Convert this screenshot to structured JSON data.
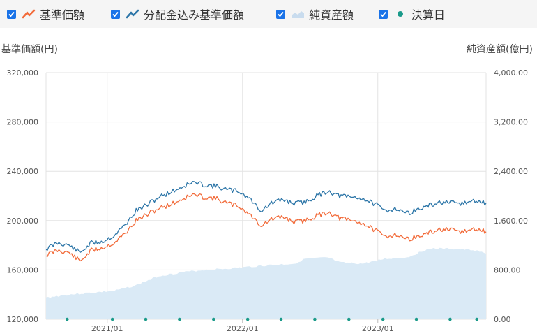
{
  "legend": [
    {
      "label": "基準価額",
      "icon": "line-chart-icon",
      "color": "#f26b3a",
      "checked": true
    },
    {
      "label": "分配金込み基準価額",
      "icon": "line-chart-icon",
      "color": "#2d76a8",
      "checked": true
    },
    {
      "label": "純資産額",
      "icon": "area-chart-icon",
      "color": "#c9dcee",
      "checked": true
    },
    {
      "label": "決算日",
      "icon": "dot-icon",
      "color": "#1a9a8a",
      "checked": true
    }
  ],
  "chart_data": {
    "type": "line",
    "ylabel": "基準価額(円)",
    "y2label": "純資産額(億円)",
    "ylim": [
      120000,
      320000
    ],
    "y2lim": [
      0,
      4000
    ],
    "yticks": [
      "320,000",
      "280,000",
      "240,000",
      "200,000",
      "160,000",
      "120,000"
    ],
    "y2ticks": [
      "4,000.00",
      "3,200.00",
      "2,400.00",
      "1,600.00",
      "800.00",
      "0.00"
    ],
    "xticks": [
      {
        "label": "2021/01",
        "date": "2021-01-01"
      },
      {
        "label": "2022/01",
        "date": "2022-01-01"
      },
      {
        "label": "2023/01",
        "date": "2023-01-01"
      }
    ],
    "xrange": [
      "2020-07-20",
      "2023-10-20"
    ],
    "grid": true,
    "series": [
      {
        "name": "基準価額",
        "color": "#f26b3a",
        "axis": "left",
        "points": [
          [
            "2020-07-20",
            172000
          ],
          [
            "2020-08-20",
            176000
          ],
          [
            "2020-09-20",
            174000
          ],
          [
            "2020-10-20",
            167000
          ],
          [
            "2020-11-20",
            176000
          ],
          [
            "2020-12-20",
            178000
          ],
          [
            "2021-01-20",
            182000
          ],
          [
            "2021-02-20",
            190000
          ],
          [
            "2021-03-20",
            200000
          ],
          [
            "2021-04-20",
            205000
          ],
          [
            "2021-05-20",
            210000
          ],
          [
            "2021-06-20",
            213000
          ],
          [
            "2021-07-20",
            217000
          ],
          [
            "2021-08-20",
            221000
          ],
          [
            "2021-09-20",
            219000
          ],
          [
            "2021-10-20",
            218000
          ],
          [
            "2021-11-20",
            214000
          ],
          [
            "2021-12-20",
            212000
          ],
          [
            "2022-01-20",
            205000
          ],
          [
            "2022-02-20",
            196000
          ],
          [
            "2022-03-20",
            201000
          ],
          [
            "2022-04-20",
            203000
          ],
          [
            "2022-05-20",
            199000
          ],
          [
            "2022-06-20",
            200000
          ],
          [
            "2022-07-20",
            204000
          ],
          [
            "2022-08-20",
            207000
          ],
          [
            "2022-09-20",
            202000
          ],
          [
            "2022-10-20",
            200000
          ],
          [
            "2022-11-20",
            198000
          ],
          [
            "2022-12-20",
            193000
          ],
          [
            "2023-01-20",
            187000
          ],
          [
            "2023-02-20",
            189000
          ],
          [
            "2023-03-20",
            185000
          ],
          [
            "2023-04-20",
            187000
          ],
          [
            "2023-05-20",
            190000
          ],
          [
            "2023-06-20",
            193000
          ],
          [
            "2023-07-20",
            192000
          ],
          [
            "2023-08-20",
            191000
          ],
          [
            "2023-09-20",
            193000
          ],
          [
            "2023-10-20",
            191000
          ]
        ]
      },
      {
        "name": "分配金込み基準価額",
        "color": "#2d76a8",
        "axis": "left",
        "points": [
          [
            "2020-07-20",
            177000
          ],
          [
            "2020-08-20",
            182000
          ],
          [
            "2020-09-20",
            180000
          ],
          [
            "2020-10-20",
            174000
          ],
          [
            "2020-11-20",
            182000
          ],
          [
            "2020-12-20",
            183000
          ],
          [
            "2021-01-20",
            188000
          ],
          [
            "2021-02-20",
            197000
          ],
          [
            "2021-03-20",
            208000
          ],
          [
            "2021-04-20",
            213000
          ],
          [
            "2021-05-20",
            219000
          ],
          [
            "2021-06-20",
            223000
          ],
          [
            "2021-07-20",
            227000
          ],
          [
            "2021-08-20",
            231000
          ],
          [
            "2021-09-20",
            229000
          ],
          [
            "2021-10-20",
            228000
          ],
          [
            "2021-11-20",
            225000
          ],
          [
            "2021-12-20",
            224000
          ],
          [
            "2022-01-20",
            218000
          ],
          [
            "2022-02-20",
            208000
          ],
          [
            "2022-03-20",
            214000
          ],
          [
            "2022-04-20",
            217000
          ],
          [
            "2022-05-20",
            214000
          ],
          [
            "2022-06-20",
            215000
          ],
          [
            "2022-07-20",
            220000
          ],
          [
            "2022-08-20",
            224000
          ],
          [
            "2022-09-20",
            220000
          ],
          [
            "2022-10-20",
            219000
          ],
          [
            "2022-11-20",
            218000
          ],
          [
            "2022-12-20",
            214000
          ],
          [
            "2023-01-20",
            208000
          ],
          [
            "2023-02-20",
            210000
          ],
          [
            "2023-03-20",
            206000
          ],
          [
            "2023-04-20",
            209000
          ],
          [
            "2023-05-20",
            212000
          ],
          [
            "2023-06-20",
            215000
          ],
          [
            "2023-07-20",
            214000
          ],
          [
            "2023-08-20",
            214000
          ],
          [
            "2023-09-20",
            216000
          ],
          [
            "2023-10-20",
            214000
          ]
        ]
      },
      {
        "name": "純資産額",
        "color": "#daeaf6",
        "axis": "right",
        "type": "area",
        "points": [
          [
            "2020-07-20",
            350
          ],
          [
            "2020-09-20",
            400
          ],
          [
            "2020-11-20",
            430
          ],
          [
            "2021-01-20",
            460
          ],
          [
            "2021-03-20",
            550
          ],
          [
            "2021-05-20",
            700
          ],
          [
            "2021-07-20",
            760
          ],
          [
            "2021-09-20",
            800
          ],
          [
            "2021-11-20",
            820
          ],
          [
            "2022-01-20",
            850
          ],
          [
            "2022-03-20",
            880
          ],
          [
            "2022-05-20",
            900
          ],
          [
            "2022-06-20",
            980
          ],
          [
            "2022-08-20",
            1000
          ],
          [
            "2022-09-20",
            920
          ],
          [
            "2022-11-20",
            900
          ],
          [
            "2023-01-20",
            980
          ],
          [
            "2023-03-20",
            1000
          ],
          [
            "2023-05-20",
            1150
          ],
          [
            "2023-07-20",
            1140
          ],
          [
            "2023-09-20",
            1120
          ],
          [
            "2023-10-20",
            1060
          ]
        ]
      }
    ],
    "settlement_dates": [
      "2020-09-15",
      "2021-01-15",
      "2021-04-15",
      "2021-07-15",
      "2021-10-15",
      "2022-01-15",
      "2022-04-15",
      "2022-07-15",
      "2022-10-15",
      "2023-01-15",
      "2023-04-15",
      "2023-07-15",
      "2023-09-25"
    ]
  }
}
